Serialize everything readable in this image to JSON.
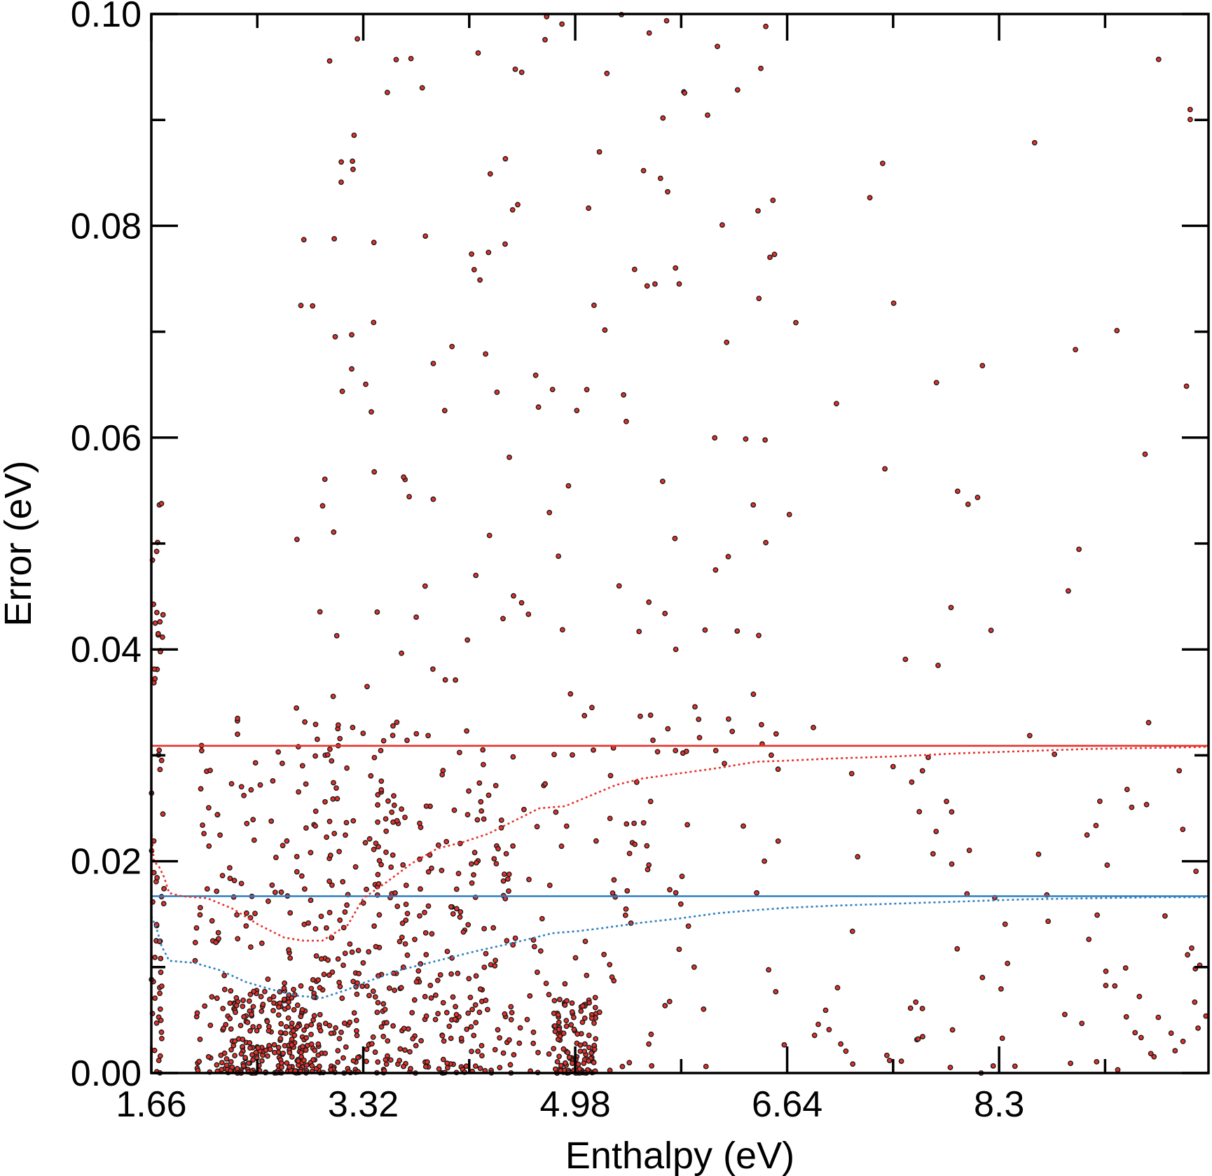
{
  "chart_data": {
    "type": "scatter",
    "xlabel": "Enthalpy (eV)",
    "ylabel": "Error (eV)",
    "xlim": [
      1.66,
      9.94
    ],
    "ylim": [
      0.0,
      0.1
    ],
    "x_ticks": [
      "1.66",
      "3.32",
      "4.98",
      "6.64",
      "8.3"
    ],
    "y_ticks": [
      "0.00",
      "0.02",
      "0.04",
      "0.06",
      "0.08",
      "0.10"
    ],
    "grid": false,
    "legend": "none",
    "colors": {
      "scatter_fill": "#e8302a",
      "scatter_edge": "#1a1a1a",
      "red_series": "#e8302a",
      "blue_series": "#2e7fc2",
      "axis": "#000000"
    },
    "series": [
      {
        "role": "scatter points (clustered)",
        "note_clusters": [
          {
            "x_range": [
              1.66,
              1.76
            ],
            "y_range": [
              0.0,
              0.054
            ],
            "count": 60
          },
          {
            "x_range": [
              2.2,
              3.0
            ],
            "y_range": [
              0.0,
              0.008
            ],
            "count": 220
          },
          {
            "x_range": [
              2.0,
              3.6
            ],
            "y_range": [
              0.0,
              0.035
            ],
            "count": 260
          },
          {
            "x_range": [
              3.0,
              4.5
            ],
            "y_range": [
              0.0,
              0.03
            ],
            "count": 220
          },
          {
            "x_range": [
              4.8,
              5.15
            ],
            "y_range": [
              0.0,
              0.007
            ],
            "count": 120
          },
          {
            "x_range": [
              3.6,
              5.6
            ],
            "y_range": [
              0.0,
              0.03
            ],
            "count": 130
          },
          {
            "x_range": [
              2.8,
              6.6
            ],
            "y_range": [
              0.03,
              0.1
            ],
            "count": 170
          },
          {
            "x_range": [
              5.4,
              9.94
            ],
            "y_range": [
              0.0,
              0.03
            ],
            "count": 110
          },
          {
            "x_range": [
              6.6,
              9.94
            ],
            "y_range": [
              0.03,
              0.1
            ],
            "count": 30
          }
        ]
      },
      {
        "role": "red horizontal line",
        "color": "#e8302a",
        "y": 0.0309
      },
      {
        "role": "blue horizontal line",
        "color": "#2e7fc2",
        "y": 0.0167
      },
      {
        "role": "red dotted running curve",
        "color": "#e8302a",
        "x": [
          1.66,
          1.68,
          1.72,
          1.76,
          1.8,
          1.9,
          2.1,
          2.3,
          2.5,
          2.7,
          2.85,
          3.0,
          3.2,
          3.32,
          3.5,
          3.7,
          3.9,
          4.1,
          4.3,
          4.5,
          4.7,
          4.9,
          5.1,
          5.3,
          5.5,
          5.8,
          6.1,
          6.4,
          6.64,
          7.0,
          7.5,
          8.0,
          8.5,
          9.0,
          9.5,
          9.94
        ],
        "y": [
          0.023,
          0.02,
          0.0195,
          0.0185,
          0.017,
          0.0167,
          0.0165,
          0.0155,
          0.014,
          0.0128,
          0.0125,
          0.0125,
          0.014,
          0.0165,
          0.018,
          0.0198,
          0.0212,
          0.0218,
          0.0226,
          0.0238,
          0.025,
          0.0252,
          0.0262,
          0.0272,
          0.0278,
          0.0283,
          0.0288,
          0.0294,
          0.0295,
          0.0297,
          0.0299,
          0.0302,
          0.0304,
          0.0306,
          0.0307,
          0.0308
        ]
      },
      {
        "role": "blue dotted running curve",
        "color": "#2e7fc2",
        "x": [
          1.66,
          1.7,
          1.74,
          1.8,
          2.0,
          2.2,
          2.4,
          2.6,
          2.8,
          3.0,
          3.2,
          3.32,
          3.6,
          3.9,
          4.2,
          4.5,
          4.8,
          5.0,
          5.2,
          5.5,
          5.8,
          6.1,
          6.4,
          6.64,
          7.0,
          7.5,
          8.0,
          8.5,
          9.0,
          9.5,
          9.94
        ],
        "y": [
          0.0148,
          0.0137,
          0.012,
          0.0106,
          0.0104,
          0.0097,
          0.0086,
          0.0079,
          0.0073,
          0.0071,
          0.0079,
          0.0085,
          0.0097,
          0.0106,
          0.0115,
          0.0123,
          0.0132,
          0.0134,
          0.0137,
          0.0142,
          0.0146,
          0.0151,
          0.0154,
          0.0156,
          0.0158,
          0.016,
          0.0162,
          0.0164,
          0.0165,
          0.0166,
          0.0166
        ]
      }
    ]
  }
}
